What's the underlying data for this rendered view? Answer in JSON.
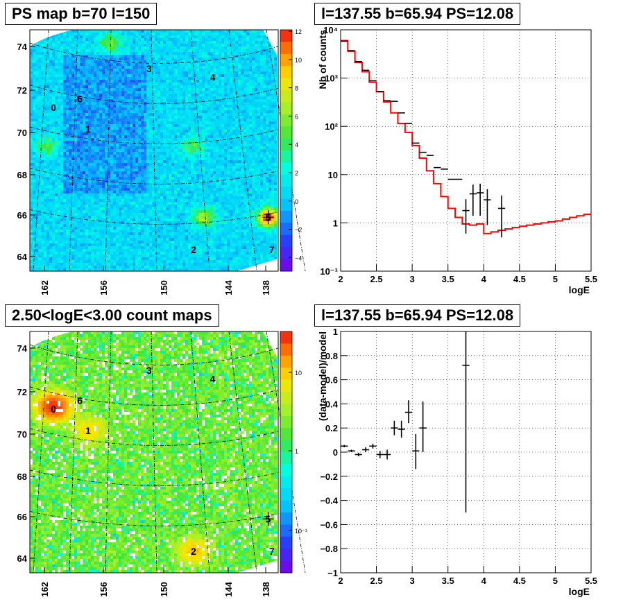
{
  "panels": {
    "ps_map": {
      "title": "PS map b=70 l=150"
    },
    "count_map": {
      "title": "2.50<logE<3.00 count maps"
    },
    "spectrum": {
      "title": "l=137.55 b=65.94 PS=12.08"
    },
    "residual": {
      "title": "l=137.55 b=65.94 PS=12.08"
    }
  },
  "colors": {
    "data": "#000000",
    "model": "#ff0000",
    "grid": "#000000"
  },
  "chart_data": [
    {
      "type": "heatmap",
      "title": "PS map b=70 l=150",
      "x_tick_labels": [
        "162",
        "156",
        "150",
        "144",
        "138"
      ],
      "y_tick_labels": [
        "64",
        "66",
        "68",
        "70",
        "72",
        "74"
      ],
      "colorbar": {
        "min": -5,
        "max": 12,
        "scale": "linear",
        "tick_labels": [
          "12",
          "10",
          "8",
          "6",
          "4",
          "2",
          "0",
          "−2",
          "−4"
        ]
      },
      "sources": [
        {
          "label": "0",
          "l": 161.2,
          "b": 71.0
        },
        {
          "label": "6",
          "l": 158.3,
          "b": 71.4
        },
        {
          "label": "1",
          "l": 157.4,
          "b": 70.0
        },
        {
          "label": "3",
          "l": 150.7,
          "b": 72.8
        },
        {
          "label": "4",
          "l": 143.7,
          "b": 72.4
        },
        {
          "label": "5",
          "l": 137.6,
          "b": 65.9
        },
        {
          "label": "2",
          "l": 145.8,
          "b": 64.4
        },
        {
          "label": "7",
          "l": 137.2,
          "b": 64.4
        }
      ],
      "hotspots": [
        {
          "l": 137.6,
          "b": 65.9,
          "value": 12
        },
        {
          "l": 144.7,
          "b": 65.9,
          "value": 6
        },
        {
          "l": 162.0,
          "b": 69.2,
          "value": 4
        },
        {
          "l": 155.0,
          "b": 74.0,
          "value": 5
        },
        {
          "l": 146.0,
          "b": 69.2,
          "value": 4
        }
      ]
    },
    {
      "type": "heatmap",
      "title": "2.50<logE<3.00 count maps",
      "x_tick_labels": [
        "162",
        "156",
        "150",
        "144",
        "138"
      ],
      "y_tick_labels": [
        "64",
        "66",
        "68",
        "70",
        "72",
        "74"
      ],
      "colorbar": {
        "scale": "log",
        "tick_labels": [
          "10",
          "1",
          "10⁻¹"
        ]
      },
      "sources": [
        {
          "label": "0",
          "l": 161.2,
          "b": 71.0
        },
        {
          "label": "6",
          "l": 158.3,
          "b": 71.4
        },
        {
          "label": "1",
          "l": 157.4,
          "b": 70.0
        },
        {
          "label": "3",
          "l": 150.7,
          "b": 72.8
        },
        {
          "label": "4",
          "l": 143.7,
          "b": 72.4
        },
        {
          "label": "5",
          "l": 137.6,
          "b": 65.9
        },
        {
          "label": "2",
          "l": 145.8,
          "b": 64.4
        },
        {
          "label": "7",
          "l": 137.2,
          "b": 64.4
        }
      ],
      "hotspots": [
        {
          "l": 161.2,
          "b": 71.1,
          "value": 15
        },
        {
          "l": 157.4,
          "b": 70.0,
          "value": 4
        },
        {
          "l": 145.8,
          "b": 64.4,
          "value": 5
        }
      ]
    },
    {
      "type": "line",
      "title": "l=137.55 b=65.94 PS=12.08",
      "xlabel": "logE",
      "ylabel": "Nb of counts",
      "xlim": [
        2,
        5.5
      ],
      "ylim": [
        0.1,
        10000
      ],
      "yscale": "log",
      "x_tick_labels": [
        "2",
        "2.5",
        "3",
        "3.5",
        "4",
        "4.5",
        "5",
        "5.5"
      ],
      "y_tick_labels": [
        "10⁻¹",
        "1",
        "10",
        "10²",
        "10³",
        "10⁴"
      ],
      "grid": true,
      "series": [
        {
          "style": "step",
          "edges": [
            2.0,
            2.1,
            2.2,
            2.3,
            2.4,
            2.5,
            2.6,
            2.7,
            2.8,
            2.9,
            3.0,
            3.1,
            3.2,
            3.3,
            3.4,
            3.5,
            3.6,
            3.7,
            3.8,
            3.9,
            4.0,
            4.1,
            4.2,
            4.3,
            4.4,
            4.5,
            4.6,
            4.7,
            4.8,
            4.9,
            5.0,
            5.1,
            5.2,
            5.3,
            5.4,
            5.5
          ],
          "values": [
            6000,
            3600,
            2100,
            1350,
            820,
            520,
            320,
            190,
            115,
            75,
            40,
            22,
            12,
            6.5,
            3.5,
            2.0,
            1.3,
            0.95,
            0.9,
            0.95,
            0.6,
            0.65,
            0.7,
            0.75,
            0.8,
            0.85,
            0.9,
            0.95,
            1.0,
            1.05,
            1.1,
            1.2,
            1.3,
            1.4,
            1.5
          ]
        },
        {
          "style": "errorbar",
          "x": [
            2.05,
            2.15,
            2.25,
            2.35,
            2.45,
            2.55,
            2.65,
            2.75,
            2.85,
            2.95,
            3.05,
            3.15,
            3.25,
            3.35,
            3.45,
            3.55,
            3.65,
            3.75,
            3.85,
            3.95,
            4.05,
            4.25
          ],
          "y": [
            5800,
            3700,
            2200,
            1450,
            880,
            530,
            340,
            330,
            190,
            115,
            45,
            29,
            25,
            14,
            13,
            8,
            8,
            1.8,
            4.0,
            4.2,
            3.0,
            2.0
          ],
          "yerr_low": [
            0,
            0,
            0,
            0,
            0,
            0,
            0,
            0,
            0,
            0,
            0,
            0,
            0,
            0,
            0,
            0,
            0,
            1.2,
            2.6,
            2.8,
            2.1,
            1.5
          ],
          "yerr_high": [
            0,
            0,
            0,
            0,
            0,
            0,
            0,
            0,
            0,
            0,
            0,
            0,
            0,
            0,
            0,
            0,
            0,
            1.3,
            2.2,
            2.3,
            2.0,
            1.7
          ]
        }
      ]
    },
    {
      "type": "scatter",
      "title": "l=137.55 b=65.94 PS=12.08",
      "xlabel": "logE",
      "ylabel": "(data-model)/model",
      "xlim": [
        2,
        5.5
      ],
      "ylim": [
        -1,
        1
      ],
      "x_tick_labels": [
        "2",
        "2.5",
        "3",
        "3.5",
        "4",
        "4.5",
        "5",
        "5.5"
      ],
      "y_tick_labels": [
        "−1",
        "−0.8",
        "−0.6",
        "−0.4",
        "−0.2",
        "0",
        "0.2",
        "0.4",
        "0.6",
        "0.8",
        "1"
      ],
      "grid": true,
      "series": [
        {
          "style": "errorbar",
          "x": [
            2.05,
            2.15,
            2.25,
            2.35,
            2.45,
            2.55,
            2.65,
            2.75,
            2.85,
            2.95,
            3.05,
            3.15,
            3.75
          ],
          "y": [
            0.05,
            0.01,
            -0.02,
            0.02,
            0.05,
            -0.02,
            -0.02,
            0.2,
            0.19,
            0.33,
            0.01,
            0.2,
            0.72
          ],
          "yerr_low": [
            0.01,
            0.01,
            0.015,
            0.02,
            0.02,
            0.03,
            0.04,
            0.06,
            0.07,
            0.09,
            0.15,
            0.2,
            1.22
          ],
          "yerr_high": [
            0.01,
            0.01,
            0.015,
            0.02,
            0.02,
            0.03,
            0.04,
            0.06,
            0.07,
            0.1,
            0.14,
            0.22,
            0.28
          ]
        }
      ]
    }
  ]
}
